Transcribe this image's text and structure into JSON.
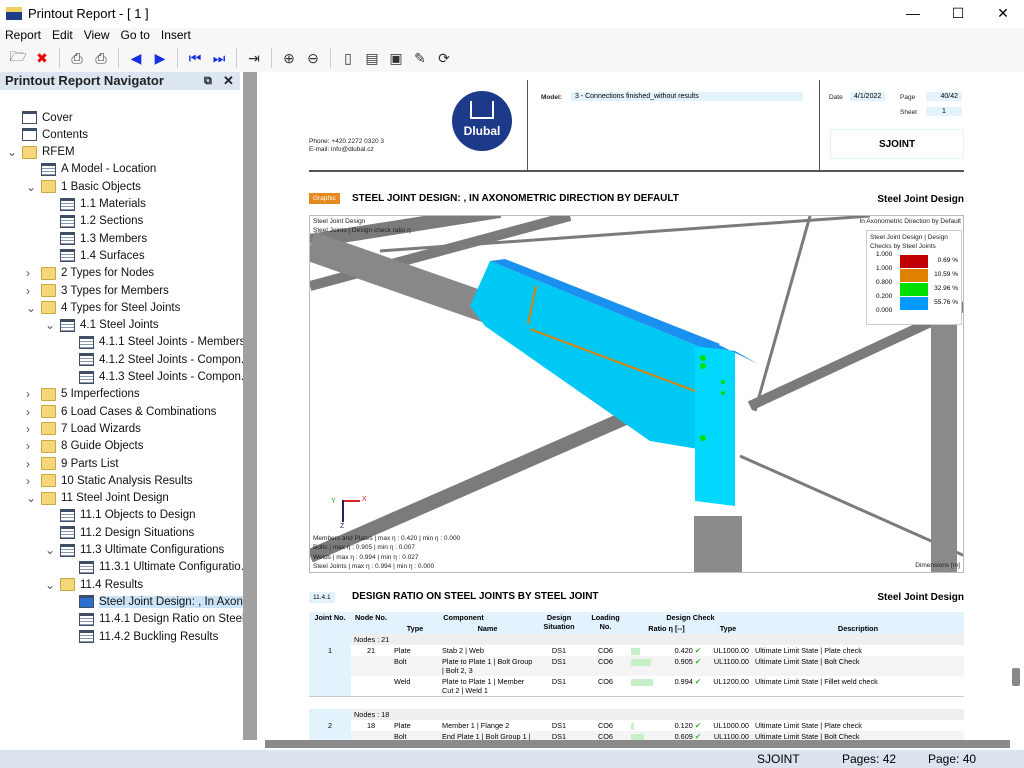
{
  "window": {
    "title": "Printout Report - [ 1 ]"
  },
  "menu": [
    "Report",
    "Edit",
    "View",
    "Go to",
    "Insert"
  ],
  "toolbar_icons": [
    "open-icon",
    "delete-icon",
    "print-icon",
    "print-setup-icon",
    "prev-page-icon",
    "next-page-icon",
    "first-page-icon",
    "last-page-icon",
    "insert-page-icon",
    "zoom-in-icon",
    "zoom-out-icon",
    "page-layout-icon",
    "page-properties-icon",
    "header-icon",
    "edit-icon",
    "refresh-icon"
  ],
  "navigator": {
    "title": "Printout Report Navigator",
    "items": [
      {
        "label": "Cover",
        "level": 1,
        "icon": "page"
      },
      {
        "label": "Contents",
        "level": 1,
        "icon": "page"
      },
      {
        "label": "RFEM",
        "level": 0,
        "icon": "folder",
        "expander": "expanded"
      },
      {
        "label": "A Model - Location",
        "level": 2,
        "icon": "table"
      },
      {
        "label": "1 Basic Objects",
        "level": 2,
        "icon": "folder",
        "expander": "expanded"
      },
      {
        "label": "1.1 Materials",
        "level": 3,
        "icon": "table"
      },
      {
        "label": "1.2 Sections",
        "level": 3,
        "icon": "table"
      },
      {
        "label": "1.3 Members",
        "level": 3,
        "icon": "table"
      },
      {
        "label": "1.4 Surfaces",
        "level": 3,
        "icon": "table"
      },
      {
        "label": "2 Types for Nodes",
        "level": 2,
        "icon": "folder",
        "expander": "collapsed"
      },
      {
        "label": "3 Types for Members",
        "level": 2,
        "icon": "folder",
        "expander": "collapsed"
      },
      {
        "label": "4 Types for Steel Joints",
        "level": 2,
        "icon": "folder",
        "expander": "expanded"
      },
      {
        "label": "4.1 Steel Joints",
        "level": 3,
        "icon": "table",
        "expander": "expanded"
      },
      {
        "label": "4.1.1 Steel Joints - Members",
        "level": 4,
        "icon": "table"
      },
      {
        "label": "4.1.2 Steel Joints - Compon...",
        "level": 4,
        "icon": "table"
      },
      {
        "label": "4.1.3 Steel Joints - Compon...",
        "level": 4,
        "icon": "table"
      },
      {
        "label": "5 Imperfections",
        "level": 2,
        "icon": "folder",
        "expander": "collapsed"
      },
      {
        "label": "6 Load Cases & Combinations",
        "level": 2,
        "icon": "folder",
        "expander": "collapsed"
      },
      {
        "label": "7 Load Wizards",
        "level": 2,
        "icon": "folder",
        "expander": "collapsed"
      },
      {
        "label": "8 Guide Objects",
        "level": 2,
        "icon": "folder",
        "expander": "collapsed"
      },
      {
        "label": "9 Parts List",
        "level": 2,
        "icon": "folder",
        "expander": "collapsed"
      },
      {
        "label": "10 Static Analysis Results",
        "level": 2,
        "icon": "folder",
        "expander": "collapsed"
      },
      {
        "label": "11 Steel Joint Design",
        "level": 2,
        "icon": "folder",
        "expander": "expanded"
      },
      {
        "label": "11.1 Objects to Design",
        "level": 3,
        "icon": "table"
      },
      {
        "label": "11.2 Design Situations",
        "level": 3,
        "icon": "table"
      },
      {
        "label": "11.3 Ultimate Configurations",
        "level": 3,
        "icon": "table",
        "expander": "expanded"
      },
      {
        "label": "11.3.1 Ultimate Configuratio...",
        "level": 4,
        "icon": "table"
      },
      {
        "label": "11.4 Results",
        "level": 3,
        "icon": "folder",
        "expander": "expanded"
      },
      {
        "label": "Steel Joint Design: , In Axon...",
        "level": 4,
        "icon": "graphic",
        "selected": true
      },
      {
        "label": "11.4.1 Design Ratio on Steel...",
        "level": 4,
        "icon": "table"
      },
      {
        "label": "11.4.2 Buckling Results",
        "level": 4,
        "icon": "table"
      }
    ]
  },
  "page": {
    "phone": "Phone: +420 2272 0320 3",
    "email": "E-mail: info@dlubal.cz",
    "logo_text": "Dlubal",
    "model_label": "Model:",
    "model_value": "3 - Connections finished_without results",
    "date_label": "Date",
    "date_value": "4/1/2022",
    "page_label": "Page",
    "page_value": "40/42",
    "sheet_label": "Sheet",
    "sheet_value": "1",
    "code": "SJOINT",
    "graphic": {
      "badge": "Graphic",
      "title": "STEEL JOINT DESIGN: , IN AXONOMETRIC DIRECTION BY DEFAULT",
      "right": "Steel Joint Design",
      "tl1": "Steel Joint Design",
      "tl2": "Steel Joints | Design check ratio η",
      "tr": "In Axonometric Direction by Default",
      "legend_title": "Steel Joint Design | Design Checks by Steel Joints",
      "legend": [
        {
          "value": "1.000",
          "color": "#c00000",
          "pct": "0.69 %"
        },
        {
          "value": "1.000",
          "color": "#e08000",
          "pct": "10.59 %"
        },
        {
          "value": "0.800",
          "color": "#00e000",
          "pct": "32.96 %"
        },
        {
          "value": "0.200",
          "color": "#0099ff",
          "pct": "55.76 %"
        }
      ],
      "legend_min": "0.000",
      "axes": {
        "x": "X",
        "y": "Y",
        "z": "Z"
      },
      "summary": [
        "Members and Plates | max η : 0.420 | min η : 0.000",
        "Bolts | max η : 0.905 | min η : 0.007",
        "Welds | max η : 0.994 | min η : 0.027",
        "Steel Joints | max η : 0.994 | min η : 0.000"
      ],
      "dimensions": "Dimensions [m]"
    },
    "table_section": {
      "number": "11.4.1",
      "title": "DESIGN RATIO ON STEEL JOINTS BY STEEL JOINT",
      "right": "Steel Joint Design",
      "headers": {
        "joint": "Joint No.",
        "node": "Node No.",
        "component": "Component",
        "type": "Type",
        "name": "Name",
        "situation": "Design Situation",
        "loading": "Loading No.",
        "check": "Design Check",
        "ratio": "Ratio η [--]",
        "ctype": "Type",
        "desc": "Description"
      },
      "groups": [
        {
          "label": "Nodes : 21",
          "joint": "1",
          "node": "21",
          "rows": [
            {
              "type": "Plate",
              "name": "Stab 2 | Web",
              "ds": "DS1",
              "lc": "CO6",
              "ratio": 0.42,
              "ratio_text": "0.420",
              "check": "UL1000.00",
              "desc": "Ultimate Limit State | Plate check"
            },
            {
              "type": "Bolt",
              "name": "Plate to Plate 1 | Bolt Group | Bolt 2, 3",
              "ds": "DS1",
              "lc": "CO6",
              "ratio": 0.905,
              "ratio_text": "0.905",
              "check": "UL1100.00",
              "desc": "Ultimate Limit State | Bolt Check"
            },
            {
              "type": "Weld",
              "name": "Plate to Plate 1 | Member Cut 2 | Weld 1",
              "ds": "DS1",
              "lc": "CO6",
              "ratio": 0.994,
              "ratio_text": "0.994",
              "check": "UL1200.00",
              "desc": "Ultimate Limit State | Fillet weld check"
            }
          ]
        },
        {
          "label": "Nodes : 18",
          "joint": "2",
          "node": "18",
          "rows": [
            {
              "type": "Plate",
              "name": "Member 1 | Flange 2",
              "ds": "DS1",
              "lc": "CO6",
              "ratio": 0.12,
              "ratio_text": "0.120",
              "check": "UL1000.00",
              "desc": "Ultimate Limit State | Plate check"
            },
            {
              "type": "Bolt",
              "name": "End Plate 1 | Bolt Group 1 |",
              "ds": "DS1",
              "lc": "CO6",
              "ratio": 0.609,
              "ratio_text": "0.609",
              "check": "UL1100.00",
              "desc": "Ultimate Limit State | Bolt Check"
            }
          ]
        }
      ]
    }
  },
  "status": {
    "code": "SJOINT",
    "pages": "Pages: 42",
    "page": "Page: 40"
  }
}
